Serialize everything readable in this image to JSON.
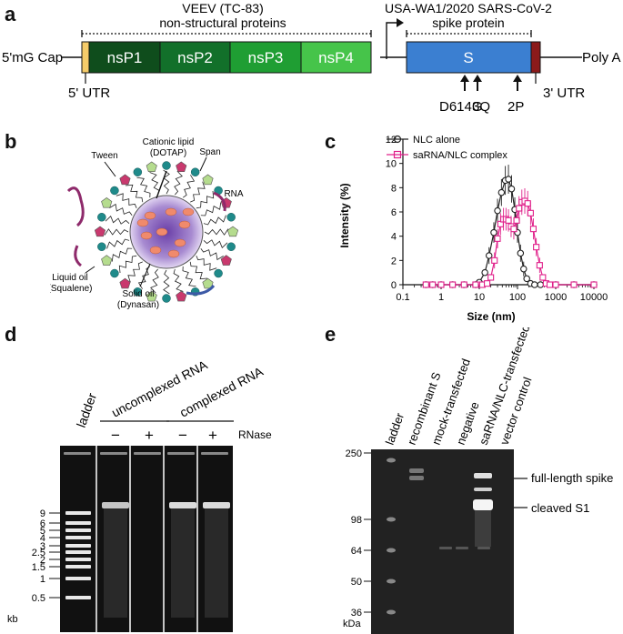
{
  "panel_labels": {
    "a": "a",
    "b": "b",
    "c": "c",
    "d": "d",
    "e": "e"
  },
  "panel_a": {
    "veev_title": "VEEV (TC-83)",
    "nsp_caption": "non-structural proteins",
    "spike_title": "USA-WA1/2020 SARS-CoV-2",
    "spike_caption": "spike protein",
    "cap_label": "5'mG Cap",
    "nsp_boxes": [
      {
        "label": "nsP1",
        "color": "#0f4d1c"
      },
      {
        "label": "nsP2",
        "color": "#12702a"
      },
      {
        "label": "nsP3",
        "color": "#1f9e33"
      },
      {
        "label": "nsP4",
        "color": "#46c44a"
      }
    ],
    "s_label": "S",
    "s_color": "#3b7fd1",
    "utr5_color": "#f5cc6a",
    "utr3_color": "#8b1a1a",
    "poly_a": "Poly A",
    "utr5_label": "5' UTR",
    "utr3_label": "3' UTR",
    "mutations": [
      "D614G",
      "3Q",
      "2P"
    ]
  },
  "panel_b": {
    "labels": [
      "Cationic lipid",
      "(DOTAP)",
      "Tween",
      "Span",
      "RNA",
      "Liquid oil",
      "(Squalene)",
      "Solid oil",
      "(Dynasan)"
    ]
  },
  "chart_data": {
    "type": "line",
    "xlabel": "Size (nm)",
    "ylabel": "Intensity (%)",
    "xscale": "log",
    "xlim": [
      0.1,
      10000
    ],
    "ylim": [
      0,
      12
    ],
    "xticks": [
      "0.1",
      "1",
      "10",
      "100",
      "1000",
      "10000"
    ],
    "yticks": [
      "0",
      "2",
      "4",
      "6",
      "8",
      "10",
      "12"
    ],
    "legend_position": "top-left",
    "series": [
      {
        "name": "NLC alone",
        "color": "#222222",
        "marker": "circle",
        "x": [
          0.4,
          0.6,
          1,
          2,
          4,
          8,
          10,
          14,
          18,
          24,
          30,
          38,
          48,
          58,
          70,
          85,
          100,
          120,
          145,
          175,
          220,
          280,
          400,
          1000,
          3000,
          10000
        ],
        "y": [
          0,
          0,
          0,
          0,
          0,
          0,
          0.2,
          1.0,
          2.4,
          4.3,
          6.1,
          7.6,
          8.6,
          8.7,
          7.9,
          6.2,
          4.3,
          2.6,
          1.3,
          0.5,
          0.1,
          0,
          0,
          0,
          0,
          0
        ]
      },
      {
        "name": "saRNA/NLC complex",
        "color": "#e0208a",
        "marker": "square",
        "x": [
          0.4,
          0.6,
          1,
          2,
          4,
          8,
          12,
          16,
          20,
          25,
          30,
          36,
          43,
          50,
          58,
          68,
          80,
          95,
          110,
          130,
          155,
          185,
          220,
          260,
          310,
          380,
          460,
          560,
          700,
          1000,
          3000,
          10000
        ],
        "y": [
          0,
          0,
          0,
          0,
          0,
          0,
          0,
          0.1,
          0.6,
          2.0,
          3.8,
          5.0,
          5.4,
          5.4,
          5.3,
          4.8,
          4.6,
          5.3,
          6.3,
          6.8,
          6.9,
          6.7,
          5.9,
          4.6,
          3.1,
          1.6,
          0.6,
          0.1,
          0,
          0,
          0,
          0
        ]
      }
    ]
  },
  "panel_d": {
    "ladder_label": "ladder",
    "group1": "uncomplexed RNA",
    "group2": "complexed RNA",
    "signs": [
      "−",
      "+",
      "−",
      "+"
    ],
    "rnase": "RNase",
    "kb_ticks": [
      "9",
      "6",
      "5",
      "4",
      "3",
      "2.5",
      "2",
      "1.5",
      "1",
      "0.5"
    ],
    "unit": "kb"
  },
  "panel_e": {
    "lanes": [
      "ladder",
      "recombinant S",
      "mock-transfected",
      "negative",
      "saRNA/NLC-transfected",
      "vector control"
    ],
    "kda_ticks": [
      "250",
      "98",
      "64",
      "50",
      "36"
    ],
    "unit": "kDa",
    "annotations": [
      "full-length spike",
      "cleaved S1"
    ]
  }
}
